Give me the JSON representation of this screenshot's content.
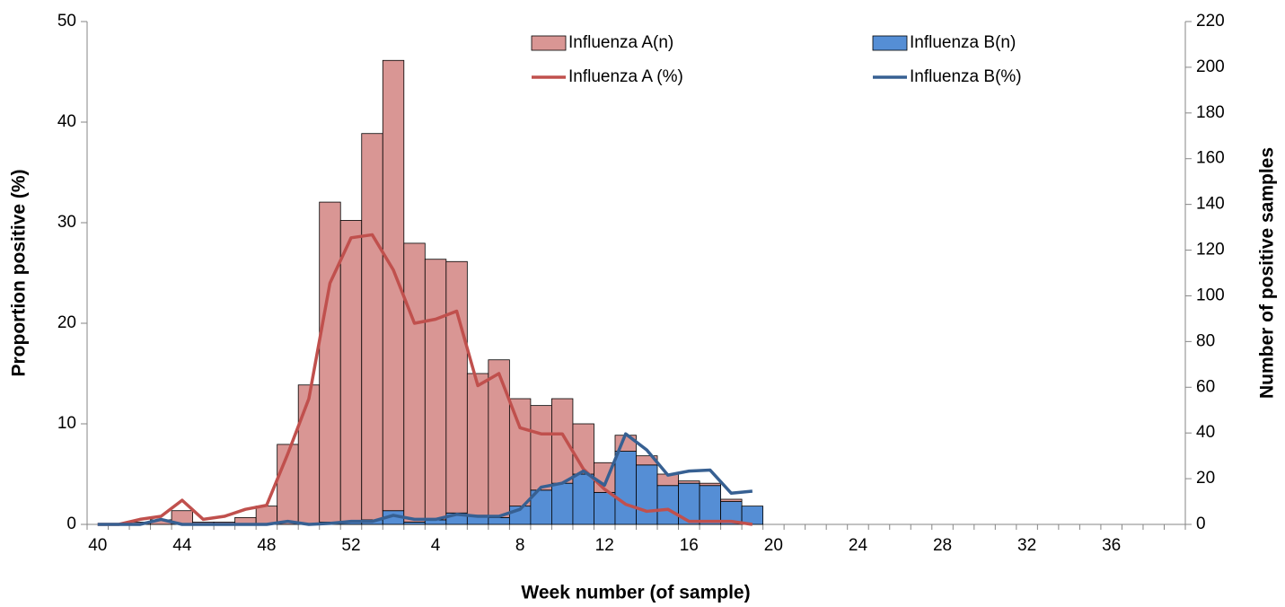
{
  "chart_data": {
    "type": "bar-line",
    "xlabel": "Week number  (of sample)",
    "ylabel": "Proportion  positive (%)",
    "y2label": "Number of positive samples",
    "categories": [
      "40",
      null,
      null,
      null,
      "44",
      null,
      null,
      null,
      "48",
      null,
      null,
      null,
      "52",
      null,
      null,
      null,
      "4",
      null,
      null,
      null,
      "8",
      null,
      null,
      null,
      "12",
      null,
      null,
      null,
      "16",
      null,
      null,
      null,
      "20",
      null,
      null,
      null,
      "24",
      null,
      null,
      null,
      "28",
      null,
      null,
      null,
      "32",
      null,
      null,
      null,
      "36",
      null,
      null,
      null
    ],
    "ylim": [
      0,
      50
    ],
    "yticks": [
      0,
      10,
      20,
      30,
      40,
      50
    ],
    "y2lim": [
      0,
      220
    ],
    "y2ticks": [
      0,
      20,
      40,
      60,
      80,
      100,
      120,
      140,
      160,
      180,
      200,
      220
    ],
    "series": [
      {
        "name": "Influenza A(n)",
        "kind": "bar",
        "axis": "y2",
        "color": "#d99694",
        "values": [
          0,
          0,
          1,
          2,
          6,
          1,
          1,
          3,
          8,
          35,
          61,
          140,
          132,
          169,
          197,
          122,
          114,
          110,
          62,
          69,
          47,
          37,
          37,
          22,
          13,
          7,
          4,
          5,
          1,
          1,
          1,
          0,
          null,
          null,
          null,
          null,
          null,
          null,
          null,
          null,
          null,
          null,
          null,
          null,
          null,
          null,
          null,
          null,
          null,
          null,
          null,
          null
        ]
      },
      {
        "name": "Influenza B(n)",
        "kind": "bar",
        "axis": "y2",
        "color": "#558ed5",
        "values": [
          0,
          0,
          0,
          0,
          0,
          0,
          0,
          0,
          0,
          0,
          0,
          1,
          1,
          2,
          6,
          1,
          2,
          5,
          4,
          3,
          8,
          15,
          18,
          22,
          14,
          32,
          26,
          17,
          18,
          17,
          10,
          8,
          null,
          null,
          null,
          null,
          null,
          null,
          null,
          null,
          null,
          null,
          null,
          null,
          null,
          null,
          null,
          null,
          null,
          null,
          null,
          null
        ]
      },
      {
        "name": "Influenza A (%)",
        "kind": "line",
        "color": "#c0504d",
        "values": [
          0,
          0,
          0.5,
          0.8,
          2.4,
          0.5,
          0.8,
          1.5,
          1.9,
          7,
          12.5,
          24,
          28.5,
          28.8,
          25.3,
          20,
          20.4,
          21.2,
          13.8,
          15,
          9.6,
          9,
          9,
          5.5,
          3.5,
          2,
          1.3,
          1.5,
          0.3,
          0.3,
          0.3,
          0,
          null,
          null,
          null,
          null,
          null,
          null,
          null,
          null,
          null,
          null,
          null,
          null,
          null,
          null,
          null,
          null,
          null,
          null,
          null,
          null
        ]
      },
      {
        "name": "Influenza B(%)",
        "kind": "line",
        "color": "#376092",
        "values": [
          0,
          0,
          0,
          0.5,
          0,
          0,
          0,
          0,
          0,
          0.3,
          0,
          0.1,
          0.3,
          0.3,
          0.9,
          0.5,
          0.5,
          1,
          0.8,
          0.8,
          1.5,
          3.7,
          4.1,
          5.3,
          3.9,
          9,
          7.4,
          4.9,
          5.3,
          5.4,
          3.1,
          3.3,
          null,
          null,
          null,
          null,
          null,
          null,
          null,
          null,
          null,
          null,
          null,
          null,
          null,
          null,
          null,
          null,
          null,
          null,
          null,
          null
        ]
      }
    ]
  }
}
